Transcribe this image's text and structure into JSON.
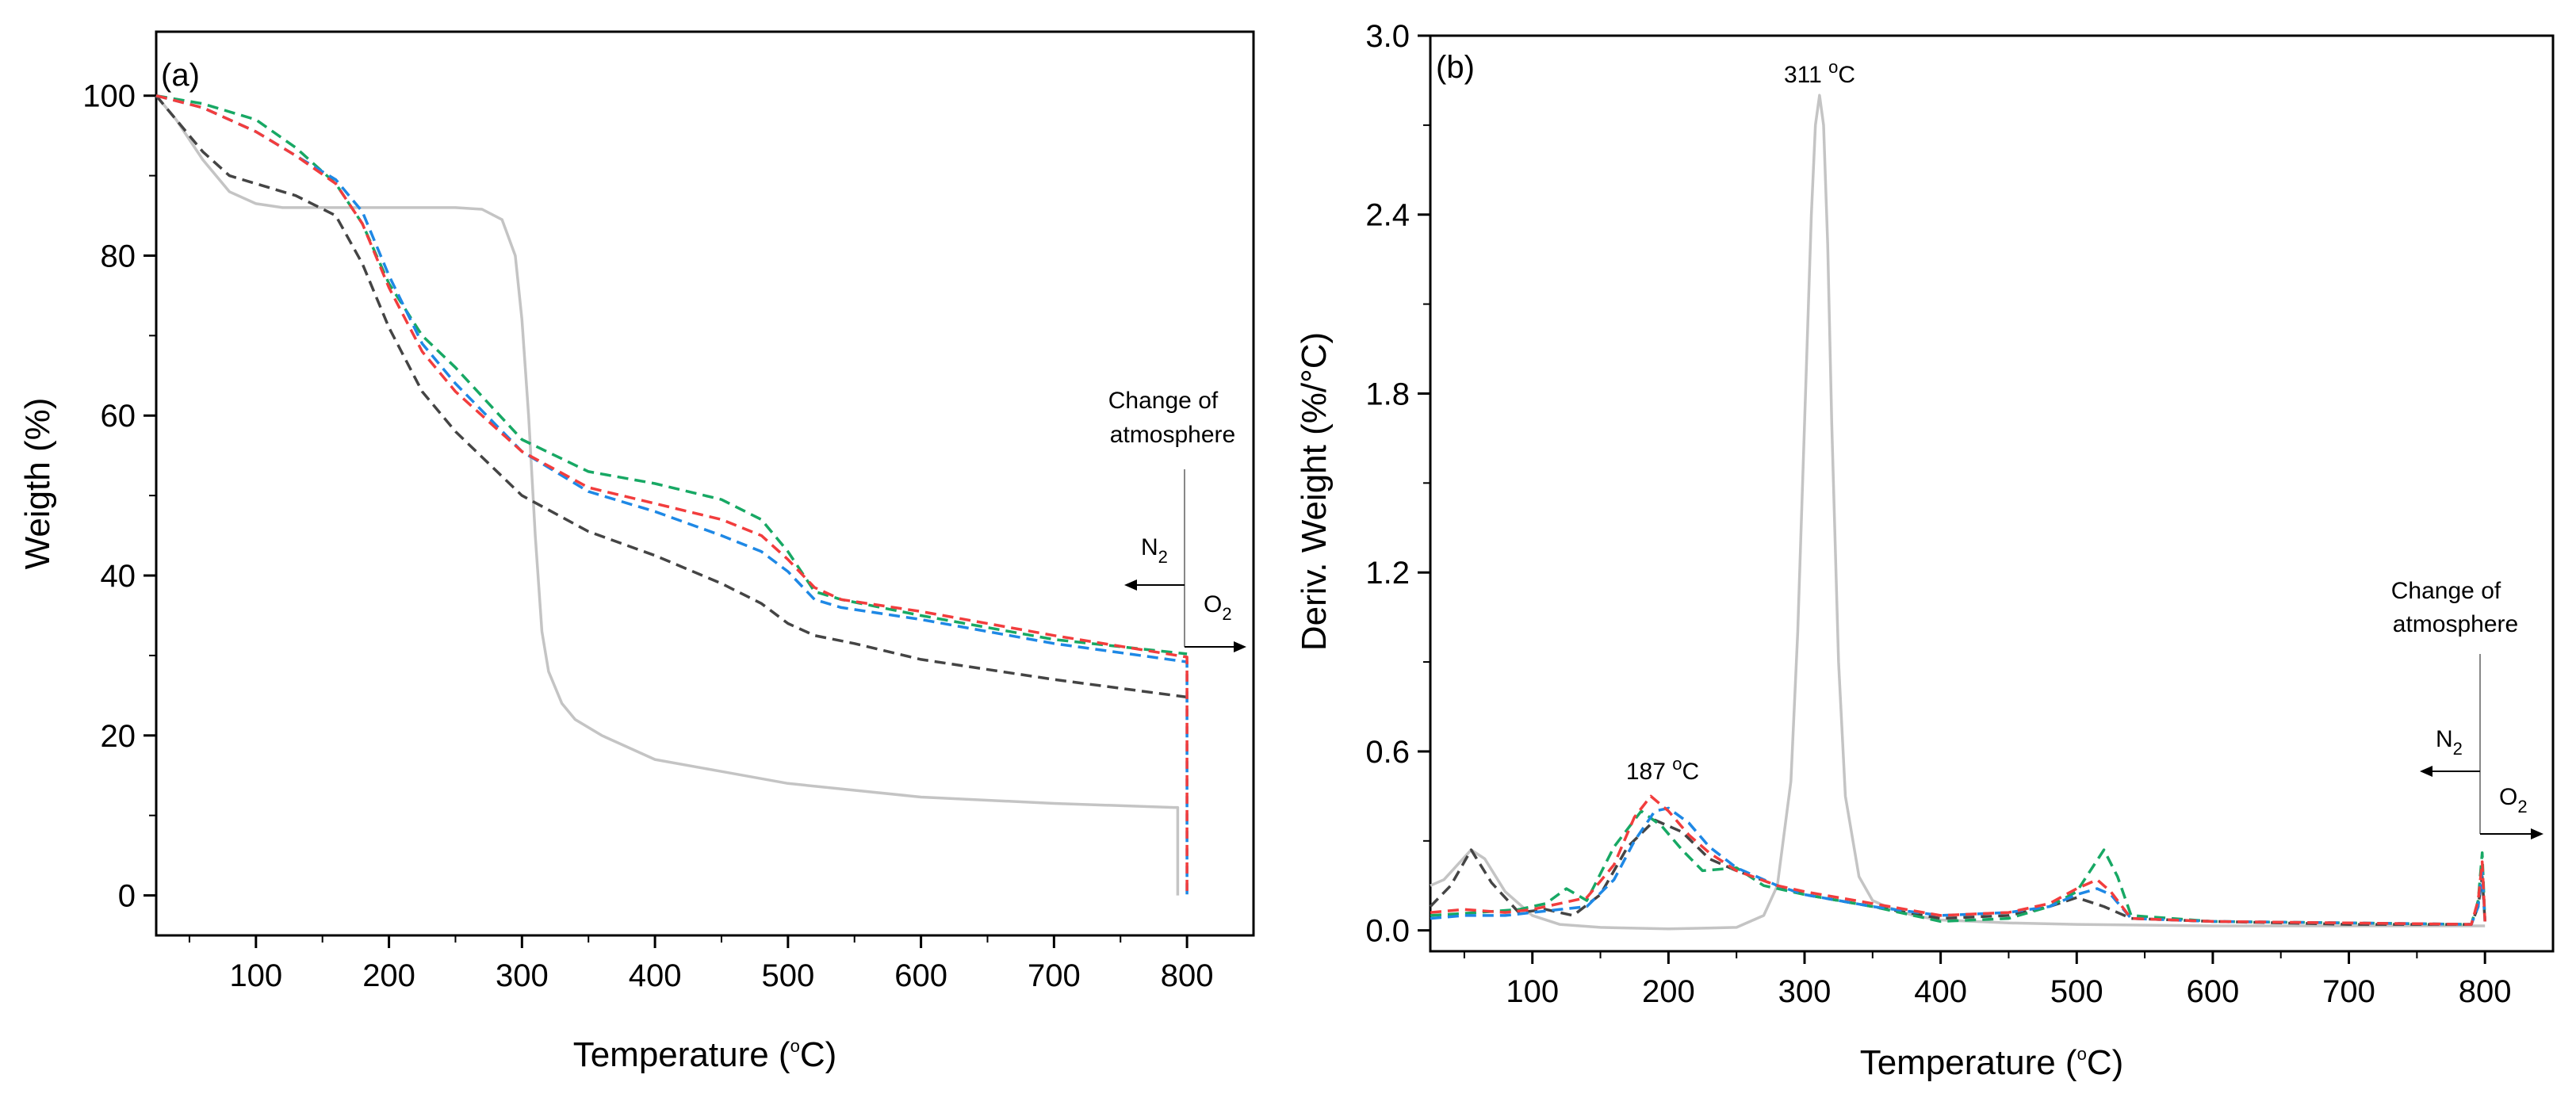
{
  "colors": {
    "gray": "#c4c4c4",
    "black": "#444444",
    "red": "#f23d3d",
    "blue": "#1e88e5",
    "green": "#17a864"
  },
  "chart_data": [
    {
      "type": "line",
      "panel": "(a)",
      "xlabel": "Temperature (°C)",
      "xlabel_main": "Temperature (",
      "xlabel_sup": "o",
      "xlabel_end": "C)",
      "ylabel": "Weigth (%)",
      "xlim": [
        25,
        850
      ],
      "ylim": [
        -5,
        108
      ],
      "xticks": [
        100,
        200,
        300,
        400,
        500,
        600,
        700,
        800
      ],
      "yticks": [
        0,
        20,
        40,
        60,
        80,
        100
      ],
      "annotations": {
        "change_line1": "Change of",
        "change_line2": "atmosphere",
        "n2": "N",
        "n2_sub": "2",
        "o2": "O",
        "o2_sub": "2"
      },
      "series": [
        {
          "name": "gray",
          "color": "gray",
          "style": "solid",
          "x": [
            25,
            40,
            60,
            80,
            100,
            120,
            150,
            200,
            250,
            270,
            285,
            295,
            300,
            305,
            310,
            315,
            320,
            330,
            340,
            360,
            400,
            450,
            500,
            600,
            700,
            790,
            793,
            793
          ],
          "y": [
            100,
            97,
            92,
            88,
            86.5,
            86,
            86,
            86,
            86,
            85.8,
            84.5,
            80,
            72,
            60,
            45,
            33,
            28,
            24,
            22,
            20,
            17,
            15.5,
            14,
            12.3,
            11.5,
            11,
            11,
            0
          ]
        },
        {
          "name": "black",
          "color": "black",
          "style": "dashed",
          "x": [
            25,
            40,
            60,
            80,
            100,
            130,
            160,
            180,
            200,
            225,
            250,
            300,
            350,
            400,
            450,
            480,
            500,
            520,
            550,
            600,
            700,
            800,
            800
          ],
          "y": [
            100,
            97,
            93,
            90,
            89,
            87.5,
            85,
            79,
            71,
            63,
            58,
            50,
            45.5,
            42.5,
            39,
            36.5,
            34,
            32.5,
            31.5,
            29.5,
            27,
            24.8,
            24.8
          ]
        },
        {
          "name": "red",
          "color": "red",
          "style": "dashed",
          "x": [
            25,
            60,
            100,
            130,
            160,
            180,
            200,
            225,
            250,
            300,
            350,
            400,
            450,
            480,
            500,
            520,
            540,
            600,
            700,
            800,
            800,
            800
          ],
          "y": [
            100,
            98.5,
            95.5,
            92.5,
            89,
            84,
            76,
            68,
            63,
            55.5,
            51,
            49,
            47,
            45,
            42,
            38.5,
            37,
            35.5,
            32.5,
            29.8,
            15,
            0
          ]
        },
        {
          "name": "blue",
          "color": "blue",
          "style": "dashed",
          "x": [
            25,
            60,
            100,
            130,
            160,
            180,
            200,
            225,
            250,
            300,
            350,
            400,
            450,
            480,
            500,
            520,
            540,
            600,
            700,
            800,
            800,
            800
          ],
          "y": [
            100,
            98.5,
            95.5,
            92.5,
            89.5,
            85.5,
            77.5,
            69,
            64,
            55.5,
            50.5,
            48,
            45,
            43,
            40.5,
            37,
            36,
            34.5,
            31.5,
            29.2,
            15,
            0
          ]
        },
        {
          "name": "green",
          "color": "green",
          "style": "dashed",
          "x": [
            25,
            60,
            100,
            130,
            160,
            180,
            200,
            225,
            250,
            300,
            350,
            400,
            450,
            480,
            500,
            520,
            540,
            600,
            700,
            800
          ],
          "y": [
            100,
            99,
            97,
            93.5,
            89,
            84,
            76.5,
            70,
            66,
            57,
            53,
            51.5,
            49.5,
            47,
            43,
            38,
            37,
            35,
            32,
            30.2
          ]
        }
      ]
    },
    {
      "type": "line",
      "panel": "(b)",
      "xlabel": "Temperature (°C)",
      "xlabel_main": "Temperature (",
      "xlabel_sup": "o",
      "xlabel_end": "C)",
      "ylabel": "Deriv. Weight (%/°C)",
      "xlim": [
        25,
        850
      ],
      "ylim": [
        -0.07,
        3.0
      ],
      "xticks": [
        100,
        200,
        300,
        400,
        500,
        600,
        700,
        800
      ],
      "yticks": [
        0.0,
        0.6,
        1.2,
        1.8,
        2.4,
        3.0
      ],
      "ytick_labels": [
        "0.0",
        "0.6",
        "1.2",
        "1.8",
        "2.4",
        "3.0"
      ],
      "annotations": {
        "peak1": "311 °C",
        "peak1_num": "311 ",
        "peak1_sup": "o",
        "peak1_unit": "C",
        "peak2": "187 °C",
        "peak2_num": "187 ",
        "peak2_sup": "o",
        "peak2_unit": "C",
        "change_line1": "Change of",
        "change_line2": "atmosphere",
        "n2": "N",
        "n2_sub": "2",
        "o2": "O",
        "o2_sub": "2"
      },
      "series": [
        {
          "name": "gray",
          "color": "gray",
          "style": "solid",
          "x": [
            25,
            35,
            45,
            55,
            65,
            80,
            100,
            120,
            150,
            200,
            250,
            270,
            280,
            290,
            295,
            300,
            305,
            308,
            311,
            314,
            317,
            320,
            325,
            330,
            340,
            350,
            360,
            380,
            400,
            450,
            500,
            600,
            700,
            800
          ],
          "y": [
            0.15,
            0.17,
            0.22,
            0.27,
            0.24,
            0.13,
            0.05,
            0.02,
            0.01,
            0.005,
            0.01,
            0.05,
            0.15,
            0.5,
            1.0,
            1.7,
            2.4,
            2.7,
            2.8,
            2.7,
            2.3,
            1.7,
            0.9,
            0.45,
            0.18,
            0.1,
            0.08,
            0.05,
            0.035,
            0.025,
            0.02,
            0.015,
            0.015,
            0.015
          ]
        },
        {
          "name": "black",
          "color": "black",
          "style": "dashed",
          "x": [
            25,
            40,
            55,
            70,
            90,
            110,
            130,
            150,
            170,
            190,
            210,
            230,
            250,
            280,
            300,
            350,
            400,
            450,
            480,
            500,
            520,
            540,
            600,
            700,
            790,
            795,
            798,
            800
          ],
          "y": [
            0.08,
            0.15,
            0.27,
            0.16,
            0.06,
            0.07,
            0.05,
            0.12,
            0.28,
            0.37,
            0.33,
            0.24,
            0.2,
            0.15,
            0.12,
            0.08,
            0.04,
            0.05,
            0.08,
            0.11,
            0.08,
            0.04,
            0.03,
            0.02,
            0.02,
            0.08,
            0.18,
            0.03
          ]
        },
        {
          "name": "red",
          "color": "red",
          "style": "dashed",
          "x": [
            25,
            50,
            80,
            100,
            120,
            140,
            160,
            175,
            187,
            200,
            215,
            230,
            250,
            280,
            300,
            350,
            400,
            450,
            480,
            500,
            515,
            525,
            540,
            600,
            700,
            790,
            795,
            798,
            800
          ],
          "y": [
            0.06,
            0.07,
            0.06,
            0.07,
            0.09,
            0.11,
            0.22,
            0.38,
            0.45,
            0.4,
            0.32,
            0.26,
            0.2,
            0.15,
            0.13,
            0.09,
            0.05,
            0.06,
            0.09,
            0.14,
            0.17,
            0.13,
            0.04,
            0.03,
            0.025,
            0.02,
            0.1,
            0.23,
            0.03
          ]
        },
        {
          "name": "blue",
          "color": "blue",
          "style": "dashed",
          "x": [
            25,
            50,
            80,
            100,
            120,
            140,
            160,
            175,
            190,
            200,
            215,
            230,
            250,
            280,
            300,
            350,
            400,
            450,
            480,
            500,
            515,
            525,
            540,
            600,
            700,
            790,
            795,
            798,
            800
          ],
          "y": [
            0.04,
            0.05,
            0.05,
            0.06,
            0.07,
            0.08,
            0.17,
            0.3,
            0.4,
            0.41,
            0.36,
            0.28,
            0.21,
            0.15,
            0.12,
            0.08,
            0.05,
            0.06,
            0.08,
            0.12,
            0.14,
            0.12,
            0.04,
            0.03,
            0.025,
            0.02,
            0.08,
            0.2,
            0.03
          ]
        },
        {
          "name": "green",
          "color": "green",
          "style": "dashed",
          "x": [
            25,
            60,
            90,
            110,
            125,
            140,
            160,
            180,
            195,
            210,
            225,
            250,
            270,
            300,
            350,
            400,
            450,
            480,
            500,
            510,
            520,
            530,
            540,
            600,
            700,
            790,
            795,
            798,
            800
          ],
          "y": [
            0.05,
            0.06,
            0.07,
            0.09,
            0.14,
            0.1,
            0.28,
            0.4,
            0.35,
            0.27,
            0.2,
            0.21,
            0.15,
            0.12,
            0.08,
            0.03,
            0.04,
            0.08,
            0.13,
            0.2,
            0.27,
            0.18,
            0.05,
            0.03,
            0.025,
            0.02,
            0.1,
            0.26,
            0.03
          ]
        }
      ]
    }
  ]
}
